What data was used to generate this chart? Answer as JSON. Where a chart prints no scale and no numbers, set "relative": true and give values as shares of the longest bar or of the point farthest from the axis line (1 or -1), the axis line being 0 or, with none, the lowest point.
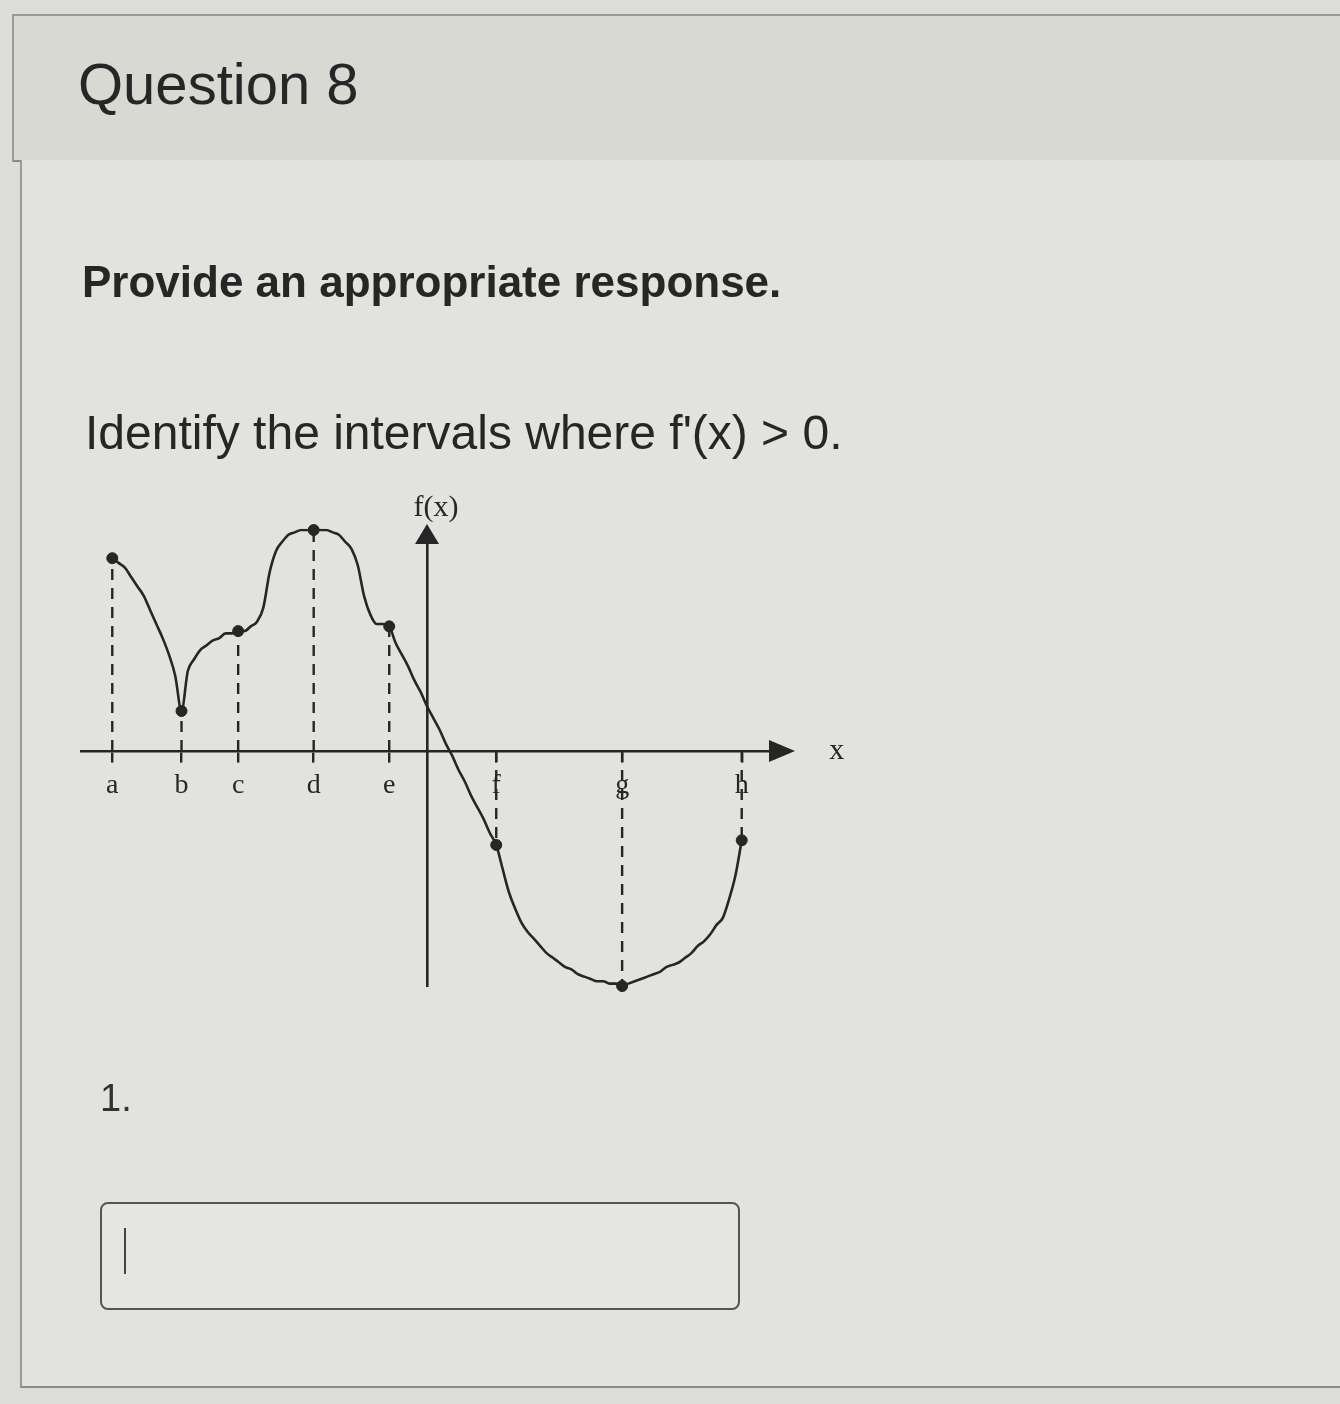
{
  "chart_data": {
    "type": "line",
    "title": "Question 8",
    "subtitle": "Provide an appropriate response.",
    "annotations": [
      "Identify the intervals where f'(x) > 0.",
      "1."
    ],
    "xlabel": "x",
    "ylabel": "f(x)",
    "relative": true,
    "categories": [
      null,
      null,
      null,
      null,
      null,
      "a",
      null,
      null,
      null,
      null,
      null,
      null,
      null,
      null,
      null,
      null,
      "b",
      null,
      null,
      null,
      null,
      null,
      null,
      null,
      null,
      "c",
      null,
      null,
      null,
      null,
      null,
      null,
      null,
      null,
      null,
      null,
      null,
      "d",
      null,
      null,
      null,
      null,
      null,
      null,
      null,
      null,
      null,
      null,
      null,
      "e",
      null,
      null,
      null,
      null,
      null,
      null,
      null,
      null,
      null,
      null,
      null,
      null,
      null,
      null,
      null,
      null,
      "f",
      null,
      null,
      null,
      null,
      null,
      null,
      null,
      null,
      null,
      null,
      null,
      null,
      null,
      null,
      null,
      null,
      null,
      null,
      null,
      "g",
      null,
      null,
      null,
      null,
      null,
      null,
      null,
      null,
      null,
      null,
      null,
      null,
      null,
      null,
      null,
      null,
      null,
      null,
      "h",
      null,
      null,
      null,
      null,
      null
    ],
    "series": [
      {
        "type": "line",
        "color": "#262626",
        "marker": "none",
        "line_style": "solid",
        "values": [
          null,
          null,
          null,
          null,
          null,
          0.82,
          0.8,
          0.78,
          0.74,
          0.7,
          0.66,
          0.6,
          0.54,
          0.48,
          0.41,
          0.32,
          0.17,
          0.34,
          0.39,
          0.43,
          0.45,
          0.47,
          0.48,
          0.5,
          0.5,
          0.51,
          0.51,
          0.53,
          0.55,
          0.61,
          0.76,
          0.85,
          0.89,
          0.92,
          0.93,
          0.94,
          0.94,
          0.94,
          0.94,
          0.94,
          0.93,
          0.92,
          0.89,
          0.86,
          0.79,
          0.66,
          0.58,
          0.54,
          0.54,
          0.53,
          0.46,
          0.41,
          0.36,
          0.3,
          0.25,
          0.19,
          0.14,
          0.09,
          0.03,
          -0.02,
          -0.08,
          -0.13,
          -0.19,
          -0.24,
          -0.29,
          -0.35,
          -0.4,
          -0.5,
          -0.6,
          -0.67,
          -0.73,
          -0.77,
          -0.8,
          -0.83,
          -0.86,
          -0.88,
          -0.9,
          -0.92,
          -0.93,
          -0.95,
          -0.96,
          -0.97,
          -0.98,
          -0.98,
          -0.99,
          -0.99,
          -1,
          -0.99,
          -0.98,
          -0.97,
          -0.96,
          -0.95,
          -0.94,
          -0.92,
          -0.91,
          -0.9,
          -0.88,
          -0.86,
          -0.83,
          -0.81,
          -0.78,
          -0.74,
          -0.71,
          -0.63,
          -0.53,
          -0.38,
          null,
          null,
          null,
          null,
          null
        ]
      },
      {
        "type": "lollipop",
        "color": "#262626",
        "marker": "circle",
        "line_style": "dashed",
        "values": [
          null,
          null,
          null,
          null,
          null,
          0.82,
          null,
          null,
          null,
          null,
          null,
          null,
          null,
          null,
          null,
          null,
          0.17,
          null,
          null,
          null,
          null,
          null,
          null,
          null,
          null,
          0.51,
          null,
          null,
          null,
          null,
          null,
          null,
          null,
          null,
          null,
          null,
          null,
          0.94,
          null,
          null,
          null,
          null,
          null,
          null,
          null,
          null,
          null,
          null,
          null,
          0.53,
          null,
          null,
          null,
          null,
          null,
          null,
          null,
          null,
          null,
          null,
          null,
          null,
          null,
          null,
          null,
          null,
          -0.4,
          null,
          null,
          null,
          null,
          null,
          null,
          null,
          null,
          null,
          null,
          null,
          null,
          null,
          null,
          null,
          null,
          null,
          null,
          null,
          -1,
          null,
          null,
          null,
          null,
          null,
          null,
          null,
          null,
          null,
          null,
          null,
          null,
          null,
          null,
          null,
          null,
          null,
          null,
          -0.38,
          null,
          null,
          null,
          null,
          null
        ]
      }
    ]
  }
}
